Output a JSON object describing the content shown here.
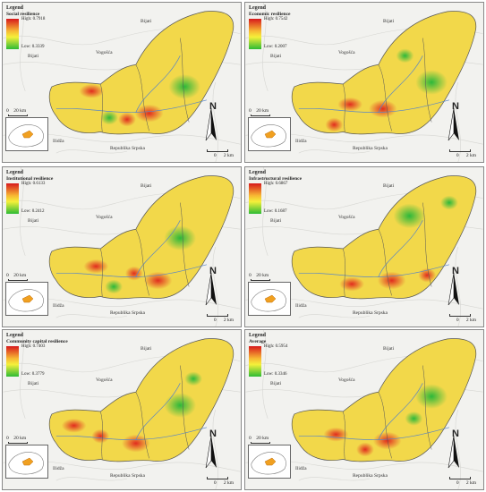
{
  "panels": [
    {
      "legend_title": "Legend",
      "indicator": "Social resilience",
      "high": "High: 0.7918",
      "low": "Low: 0.3339"
    },
    {
      "legend_title": "Legend",
      "indicator": "Economic resilience",
      "high": "High: 0.7542",
      "low": "Low: 0.2007"
    },
    {
      "legend_title": "Legend",
      "indicator": "Institutional  resilience",
      "high": "High: 0.6133",
      "low": "Low: 0.2412"
    },
    {
      "legend_title": "Legend",
      "indicator": "Infrastructural resilience",
      "high": "High: 0.6867",
      "low": "Low: 0.1687"
    },
    {
      "legend_title": "Legend",
      "indicator": "Community capital resilience",
      "high": "High: 0.7403",
      "low": "Low: 0.3779"
    },
    {
      "legend_title": "Legend",
      "indicator": "Average",
      "high": "High: 0.5954",
      "low": "Low: 0.3346"
    }
  ],
  "places": {
    "bijati": "Bijati",
    "vogosca": "Vogošća",
    "bijati2": "Bijati",
    "ilidza": "Ilidža",
    "republika": "Republika Srpska"
  },
  "scale_inset": {
    "left": "0",
    "right": "20 km"
  },
  "scale_map": {
    "left": "0",
    "right": "2 km"
  },
  "north_label": "N",
  "colors": {
    "high": "#d7191c",
    "mid": "#f5f03a",
    "low": "#2dbb35"
  }
}
